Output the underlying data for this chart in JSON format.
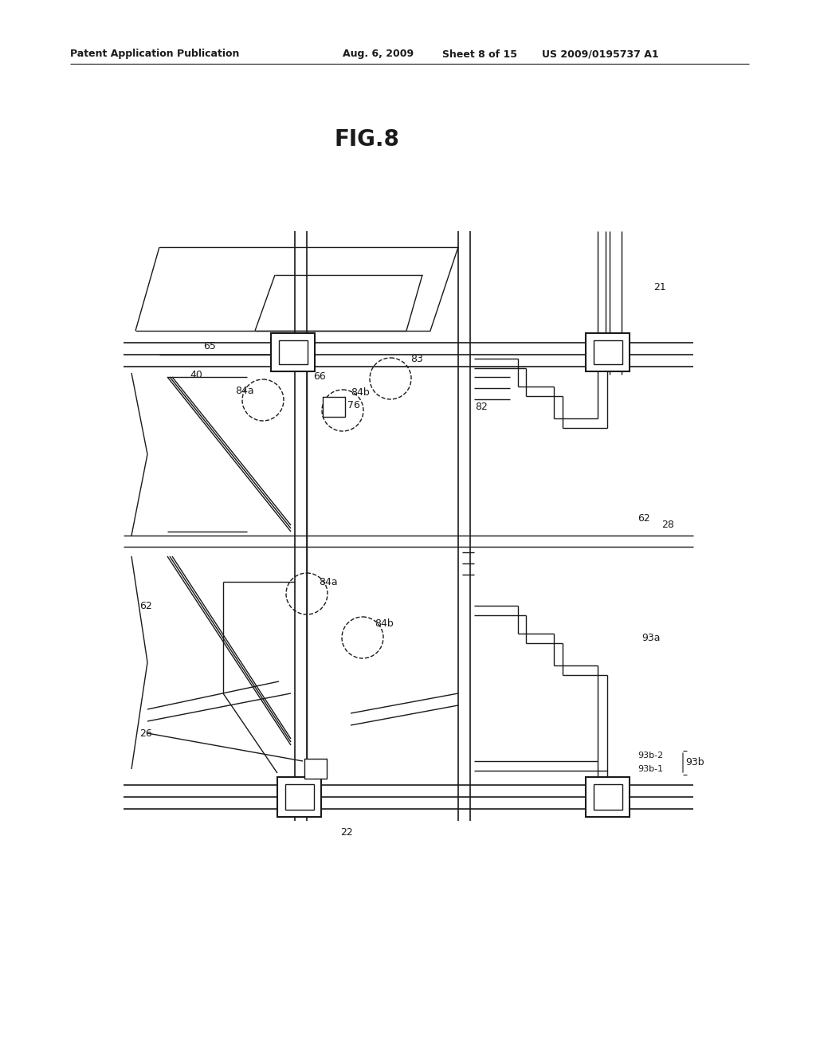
{
  "background_color": "#ffffff",
  "header_left": "Patent Application Publication",
  "header_mid": "Aug. 6, 2009   Sheet 8 of 15",
  "header_right": "US 2009/0195737 A1",
  "fig_title": "FIG.8",
  "line_color": "#1a1a1a"
}
